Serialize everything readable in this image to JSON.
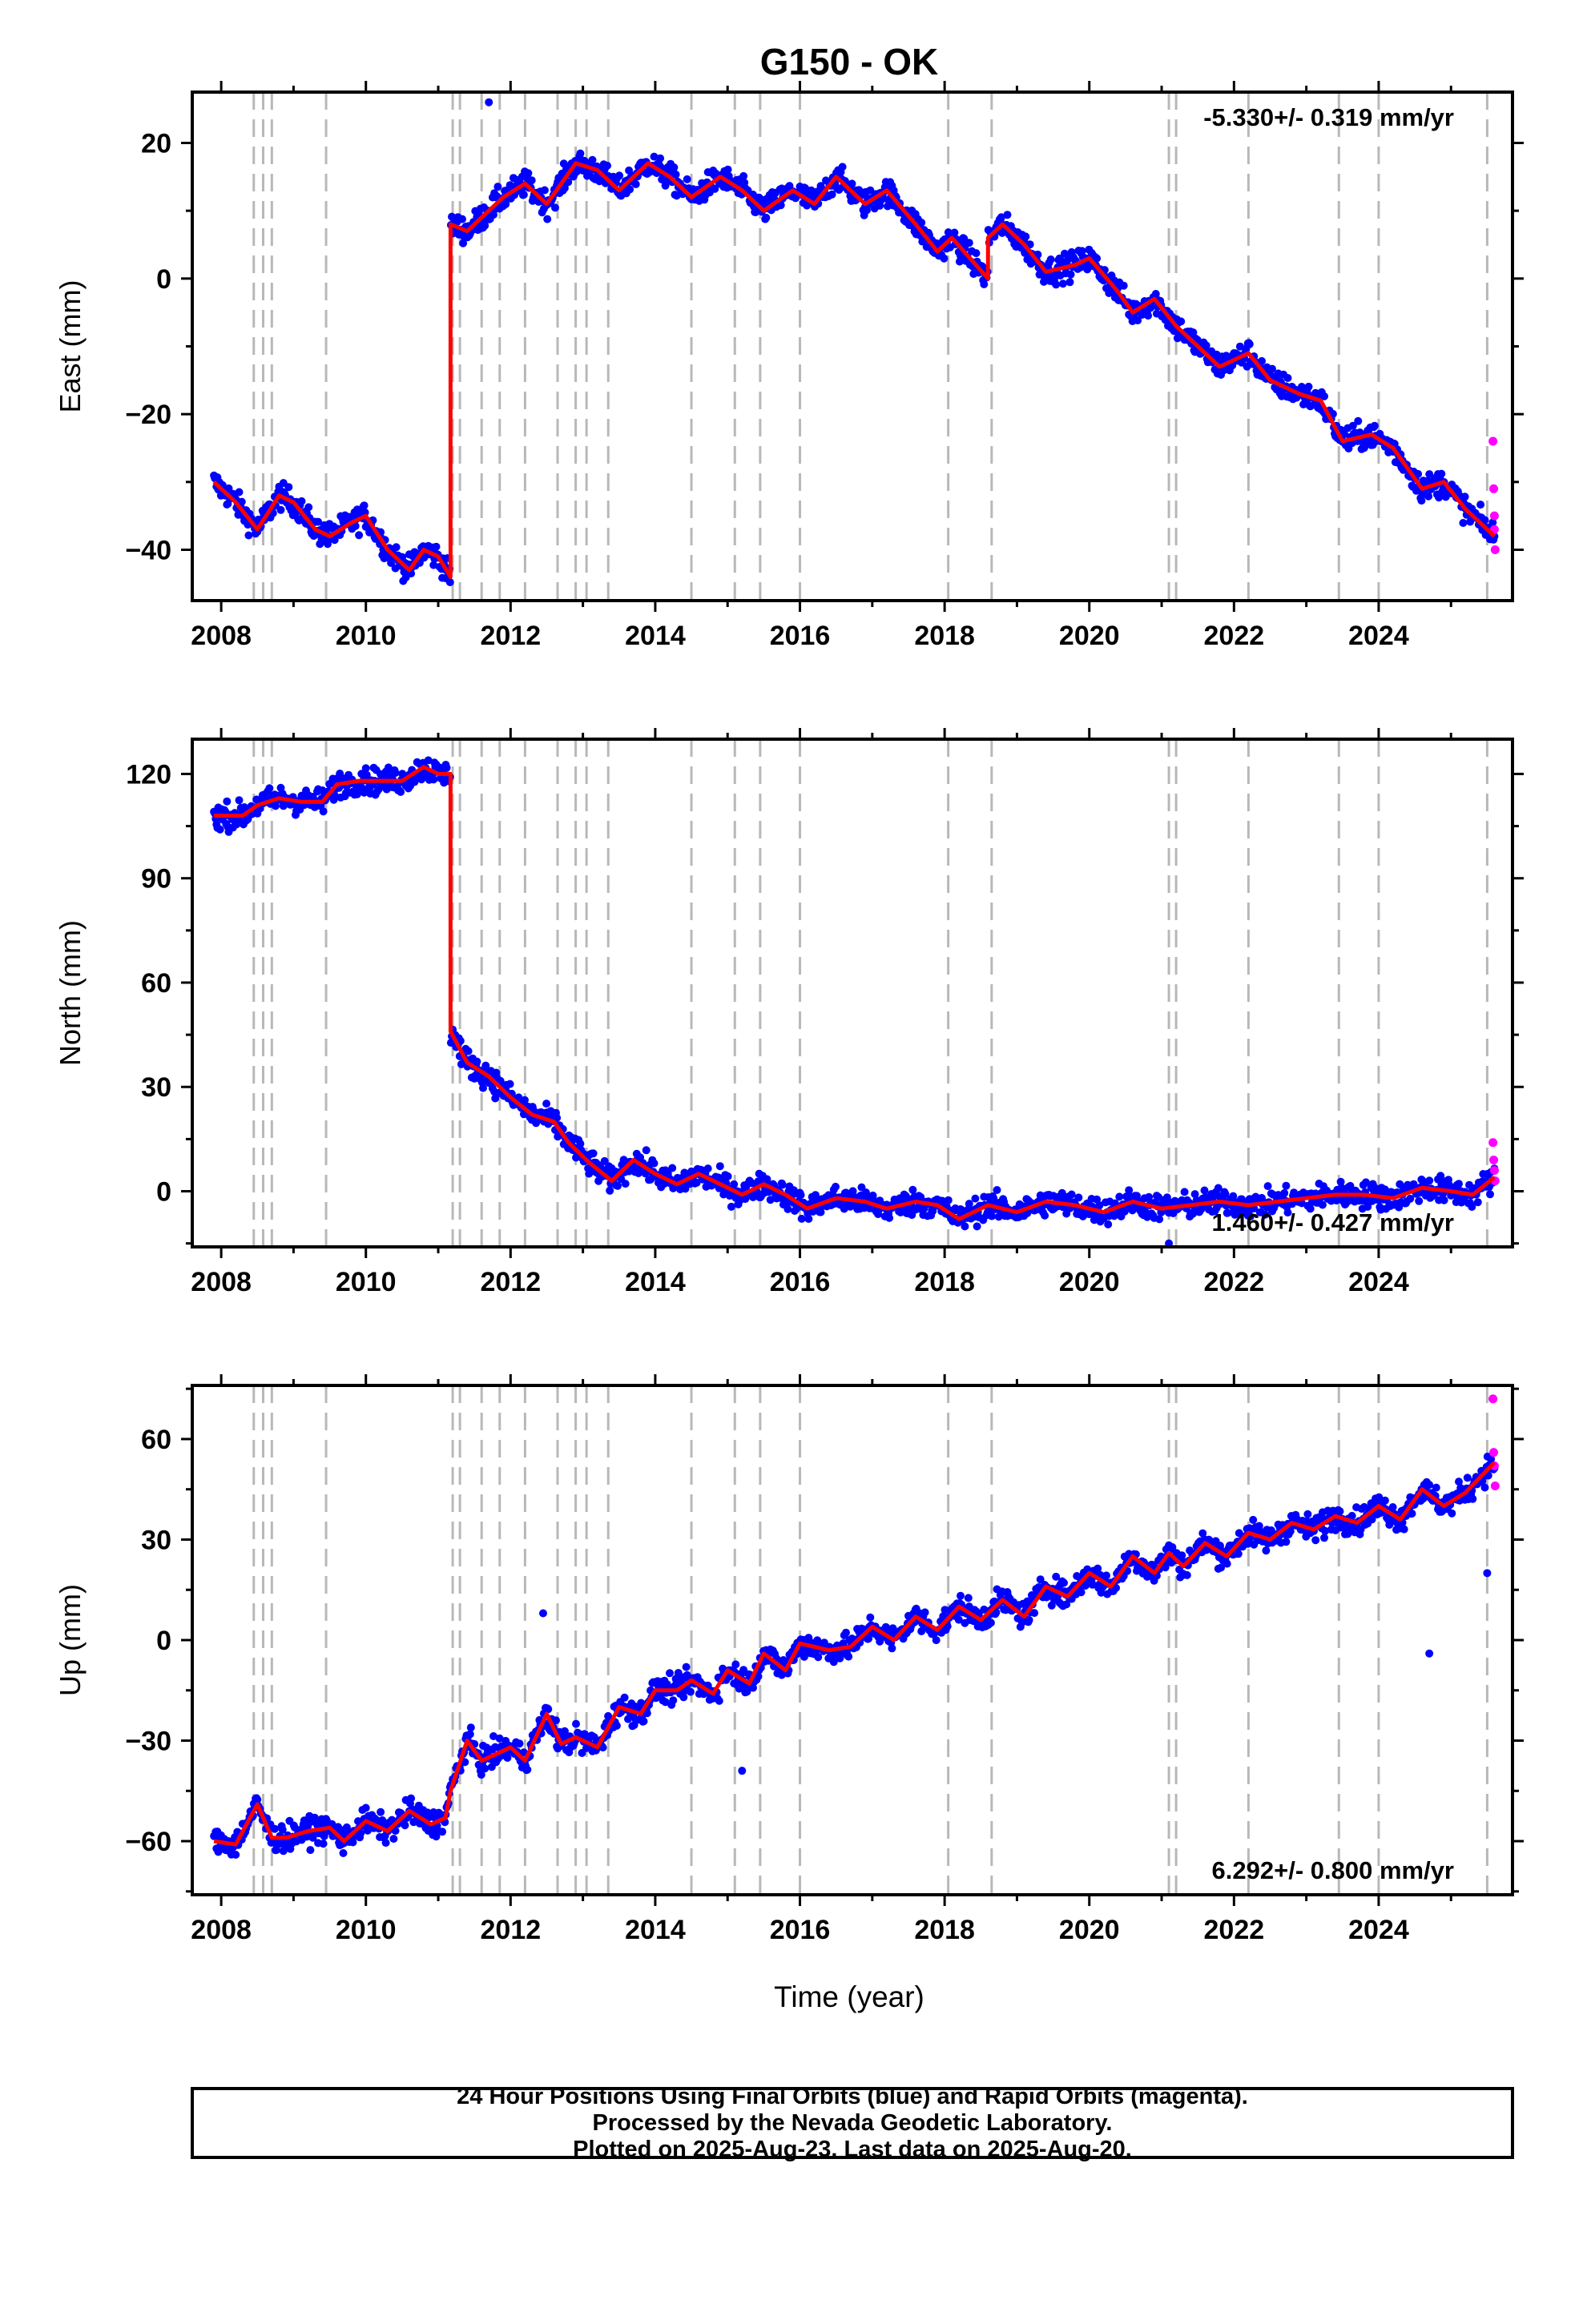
{
  "figure": {
    "title": "G150 - OK",
    "xlabel": "Time (year)",
    "footer": [
      "24 Hour Positions Using Final Orbits (blue) and Rapid Orbits (magenta).",
      "Processed by the Nevada Geodetic Laboratory.",
      "Plotted on 2025-Aug-23. Last data on 2025-Aug-20."
    ],
    "colors": {
      "final": "#0000ff",
      "rapid": "#ff00ff",
      "model": "#ff0000",
      "event_lines": "#b8b8b8"
    }
  },
  "chart_data": [
    {
      "type": "scatter",
      "ylabel": "East (mm)",
      "xlim": [
        2007.6,
        2025.85
      ],
      "ylim": [
        -47.5,
        27.5
      ],
      "xticks": [
        2008,
        2010,
        2012,
        2014,
        2016,
        2018,
        2020,
        2022,
        2024
      ],
      "yticks": [
        -40,
        -20,
        0,
        20
      ],
      "rate_label": "-5.330+/- 0.319 mm/yr",
      "rate_position": "top-right",
      "event_lines": [
        2008.45,
        2008.58,
        2008.7,
        2009.45,
        2011.2,
        2011.3,
        2011.6,
        2011.85,
        2012.2,
        2012.65,
        2012.9,
        2013.05,
        2013.35,
        2014.5,
        2015.1,
        2015.45,
        2016.0,
        2018.05,
        2018.65,
        2021.1,
        2021.2,
        2022.2,
        2023.45,
        2024.0,
        2025.5
      ],
      "series": [
        {
          "role": "model",
          "x": [
            2007.9,
            2008.2,
            2008.5,
            2008.8,
            2009.0,
            2009.3,
            2009.5,
            2009.8,
            2010.0,
            2010.3,
            2010.6,
            2010.8,
            2011.0,
            2011.17,
            2011.17,
            2011.4,
            2011.6,
            2011.9,
            2012.2,
            2012.5,
            2012.9,
            2013.2,
            2013.5,
            2013.9,
            2014.2,
            2014.5,
            2014.9,
            2015.2,
            2015.5,
            2015.9,
            2016.2,
            2016.5,
            2016.9,
            2017.2,
            2017.6,
            2017.9,
            2018.1,
            2018.6,
            2018.6,
            2018.8,
            2019.1,
            2019.4,
            2019.8,
            2020.0,
            2020.4,
            2020.6,
            2020.9,
            2021.2,
            2021.5,
            2021.8,
            2022.2,
            2022.5,
            2022.9,
            2023.2,
            2023.5,
            2023.9,
            2024.2,
            2024.6,
            2024.9,
            2025.2,
            2025.6
          ],
          "y": [
            -30,
            -33,
            -37,
            -32,
            -33,
            -37,
            -38,
            -36,
            -35,
            -40,
            -43,
            -40,
            -41,
            -44,
            8,
            7,
            9,
            12,
            14,
            11,
            17,
            16,
            13,
            17,
            15,
            12,
            15,
            13,
            10,
            13,
            11,
            15,
            11,
            13,
            8,
            4,
            6,
            0,
            6,
            8,
            5,
            1,
            2,
            3,
            -2,
            -5,
            -3,
            -7,
            -10,
            -13,
            -11,
            -15,
            -17,
            -18,
            -24,
            -23,
            -25,
            -31,
            -30,
            -34,
            -38
          ]
        },
        {
          "role": "final",
          "x": [
            2011.7
          ],
          "y": [
            26
          ]
        },
        {
          "role": "rapid",
          "x": [
            2025.58,
            2025.59,
            2025.6,
            2025.6,
            2025.61
          ],
          "y": [
            -24,
            -31,
            -35,
            -37,
            -40
          ]
        }
      ]
    },
    {
      "type": "scatter",
      "ylabel": "North (mm)",
      "xlim": [
        2007.6,
        2025.85
      ],
      "ylim": [
        -16,
        130
      ],
      "xticks": [
        2008,
        2010,
        2012,
        2014,
        2016,
        2018,
        2020,
        2022,
        2024
      ],
      "yticks": [
        0,
        30,
        60,
        90,
        120
      ],
      "rate_label": "1.460+/- 0.427 mm/yr",
      "rate_position": "bottom-right",
      "event_lines": [
        2008.45,
        2008.58,
        2008.7,
        2009.45,
        2011.2,
        2011.3,
        2011.6,
        2011.85,
        2012.2,
        2012.65,
        2012.9,
        2013.05,
        2013.35,
        2014.5,
        2015.1,
        2015.45,
        2016.0,
        2018.05,
        2018.65,
        2021.1,
        2021.2,
        2022.2,
        2023.45,
        2024.0,
        2025.5
      ],
      "series": [
        {
          "role": "model",
          "x": [
            2007.9,
            2008.3,
            2008.5,
            2008.8,
            2009.1,
            2009.4,
            2009.6,
            2009.9,
            2010.2,
            2010.5,
            2010.8,
            2011.0,
            2011.17,
            2011.17,
            2011.4,
            2011.7,
            2012.0,
            2012.3,
            2012.6,
            2012.8,
            2013.1,
            2013.4,
            2013.7,
            2014.0,
            2014.3,
            2014.6,
            2014.9,
            2015.2,
            2015.5,
            2015.8,
            2016.1,
            2016.5,
            2016.9,
            2017.2,
            2017.6,
            2017.9,
            2018.2,
            2018.6,
            2019.0,
            2019.4,
            2019.8,
            2020.2,
            2020.6,
            2021.0,
            2021.4,
            2021.8,
            2022.2,
            2022.6,
            2023.0,
            2023.4,
            2023.8,
            2024.2,
            2024.6,
            2025.0,
            2025.3,
            2025.6
          ],
          "y": [
            108,
            108,
            111,
            113,
            112,
            112,
            117,
            118,
            118,
            118,
            122,
            120,
            120,
            46,
            37,
            33,
            27,
            22,
            20,
            14,
            8,
            3,
            9,
            5,
            2,
            5,
            2,
            -1,
            2,
            -1,
            -5,
            -2,
            -3,
            -5,
            -3,
            -4,
            -8,
            -4,
            -6,
            -3,
            -4,
            -6,
            -3,
            -5,
            -4,
            -3,
            -4,
            -3,
            -2,
            -1,
            -1,
            -2,
            1,
            0,
            -1,
            4
          ]
        },
        {
          "role": "final",
          "x": [
            2021.1
          ],
          "y": [
            -15
          ]
        },
        {
          "role": "rapid",
          "x": [
            2025.58,
            2025.59,
            2025.6,
            2025.61
          ],
          "y": [
            14,
            9,
            6,
            3
          ]
        }
      ]
    },
    {
      "type": "scatter",
      "ylabel": "Up (mm)",
      "xlim": [
        2007.6,
        2025.85
      ],
      "ylim": [
        -76,
        76
      ],
      "xticks": [
        2008,
        2010,
        2012,
        2014,
        2016,
        2018,
        2020,
        2022,
        2024
      ],
      "yticks": [
        -60,
        -30,
        0,
        30,
        60
      ],
      "rate_label": "6.292+/- 0.800 mm/yr",
      "rate_position": "bottom-right",
      "event_lines": [
        2008.45,
        2008.58,
        2008.7,
        2009.45,
        2011.2,
        2011.3,
        2011.6,
        2011.85,
        2012.2,
        2012.65,
        2012.9,
        2013.05,
        2013.35,
        2014.5,
        2015.1,
        2015.45,
        2016.0,
        2018.05,
        2018.65,
        2021.1,
        2021.2,
        2022.2,
        2023.45,
        2024.0,
        2025.5
      ],
      "series": [
        {
          "role": "model",
          "x": [
            2007.9,
            2008.2,
            2008.5,
            2008.7,
            2008.9,
            2009.2,
            2009.5,
            2009.7,
            2010.0,
            2010.3,
            2010.6,
            2010.9,
            2011.1,
            2011.17,
            2011.4,
            2011.6,
            2011.8,
            2012.0,
            2012.2,
            2012.5,
            2012.7,
            2012.9,
            2013.2,
            2013.5,
            2013.8,
            2014.0,
            2014.3,
            2014.5,
            2014.8,
            2015.0,
            2015.3,
            2015.5,
            2015.8,
            2016.0,
            2016.4,
            2016.7,
            2017.0,
            2017.3,
            2017.6,
            2017.9,
            2018.2,
            2018.5,
            2018.8,
            2019.1,
            2019.4,
            2019.7,
            2020.0,
            2020.3,
            2020.6,
            2020.9,
            2021.1,
            2021.3,
            2021.6,
            2021.9,
            2022.2,
            2022.5,
            2022.8,
            2023.1,
            2023.4,
            2023.7,
            2024.0,
            2024.3,
            2024.6,
            2024.9,
            2025.2,
            2025.6
          ],
          "y": [
            -60,
            -61,
            -49,
            -59,
            -59,
            -57,
            -56,
            -60,
            -54,
            -57,
            -51,
            -55,
            -53,
            -45,
            -30,
            -36,
            -34,
            -32,
            -36,
            -22,
            -31,
            -29,
            -32,
            -20,
            -22,
            -15,
            -15,
            -12,
            -16,
            -9,
            -13,
            -4,
            -9,
            -1,
            -3,
            -2,
            4,
            0,
            7,
            3,
            10,
            6,
            12,
            7,
            16,
            13,
            20,
            16,
            25,
            20,
            26,
            22,
            29,
            25,
            32,
            30,
            35,
            33,
            37,
            35,
            40,
            36,
            45,
            40,
            44,
            53
          ]
        },
        {
          "role": "final",
          "x": [
            2012.45,
            2015.2,
            2024.7,
            2025.5
          ],
          "y": [
            8,
            -39,
            -4,
            20
          ]
        },
        {
          "role": "rapid",
          "x": [
            2025.58,
            2025.59,
            2025.6,
            2025.61
          ],
          "y": [
            72,
            56,
            52,
            46
          ]
        }
      ]
    }
  ]
}
